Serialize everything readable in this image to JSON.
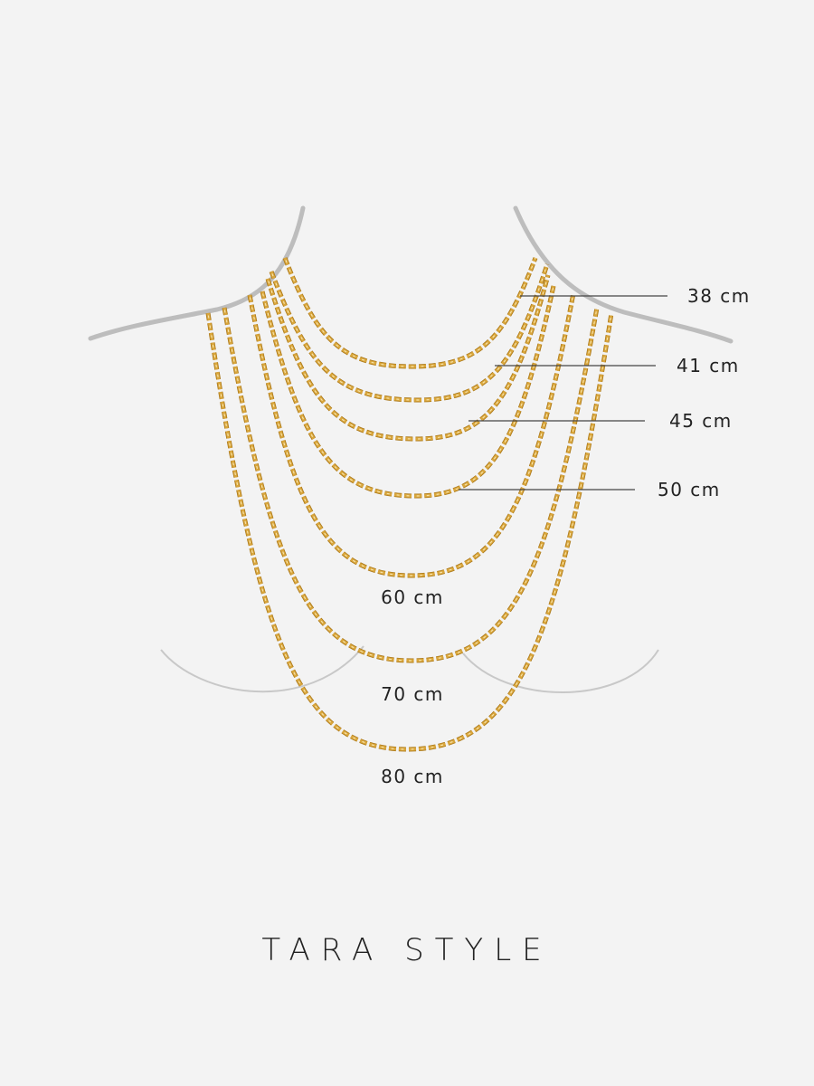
{
  "title": "TARA STYLE",
  "colors": {
    "chain": "#d9a63c",
    "chain_dark": "#a87517",
    "body_outline": "#bdbdbd",
    "background": "#f3f3f3",
    "text": "#222222"
  },
  "lengths": [
    {
      "label": "38 cm"
    },
    {
      "label": "41 cm"
    },
    {
      "label": "45 cm"
    },
    {
      "label": "50 cm"
    },
    {
      "label": "60 cm"
    },
    {
      "label": "70 cm"
    },
    {
      "label": "80 cm"
    }
  ]
}
